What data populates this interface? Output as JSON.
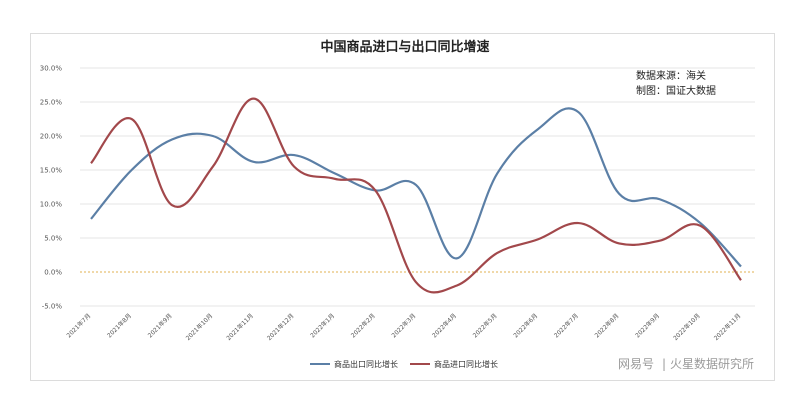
{
  "chart_data": {
    "type": "line",
    "title": "中国商品进口与出口同比增速",
    "annotations": [
      "数据来源：海关",
      "制图：国证大数据"
    ],
    "xlabel": "",
    "ylabel": "",
    "ylim": [
      -5,
      30
    ],
    "y_ticks": [
      "30.0%",
      "25.0%",
      "20.0%",
      "15.0%",
      "10.0%",
      "5.0%",
      "0.0%",
      "-5.0%"
    ],
    "y_tick_values": [
      30,
      25,
      20,
      15,
      10,
      5,
      0,
      -5
    ],
    "grid": true,
    "legend_position": "bottom",
    "categories": [
      "2021年7月",
      "2021年8月",
      "2021年9月",
      "2021年10月",
      "2021年11月",
      "2021年12月",
      "2022年1月",
      "2022年2月",
      "2022年3月",
      "2022年4月",
      "2022年5月",
      "2022年6月",
      "2022年7月",
      "2022年8月",
      "2022年9月",
      "2022年10月",
      "2022年11月"
    ],
    "series": [
      {
        "name": "商品出口同比增长",
        "color": "#5b7fa6",
        "values": [
          7.8,
          15.0,
          19.5,
          20.0,
          16.2,
          17.2,
          14.5,
          12.0,
          12.8,
          2.0,
          14.5,
          21.0,
          23.5,
          11.5,
          10.7,
          7.2,
          0.8
        ]
      },
      {
        "name": "商品进口同比增长",
        "color": "#a2484b",
        "values": [
          16.0,
          22.5,
          9.8,
          15.5,
          25.5,
          15.5,
          13.7,
          12.0,
          -1.5,
          -2.0,
          2.8,
          4.8,
          7.2,
          4.2,
          4.6,
          6.8,
          -1.2
        ]
      }
    ],
    "zero_line_color": "#e0b050"
  },
  "watermark": {
    "left": "网易号",
    "right": "火星数据研究所"
  }
}
